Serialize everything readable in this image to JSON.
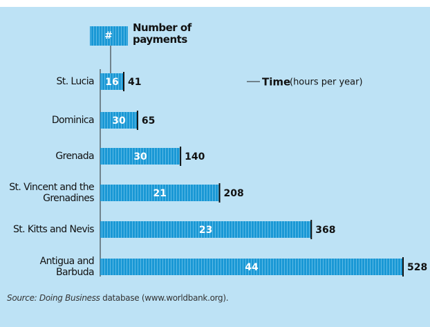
{
  "chart_data": {
    "type": "bar",
    "categories": [
      "St. Lucia",
      "Dominica",
      "Grenada",
      "St. Vincent and the Grenadines",
      "St. Kitts and Nevis",
      "Antigua and Barbuda"
    ],
    "series": [
      {
        "name": "Time",
        "color": "#1a98d5",
        "values": [
          41,
          65,
          140,
          208,
          368,
          528
        ]
      },
      {
        "name": "Number of payments",
        "color": "#ffffff",
        "values": [
          16,
          30,
          30,
          21,
          23,
          44
        ]
      }
    ],
    "legend_symbol": "#",
    "time_unit": "(hours per year)",
    "source_italic": "Source: Doing Business",
    "source_rest": " database (www.worldbank.org)."
  }
}
